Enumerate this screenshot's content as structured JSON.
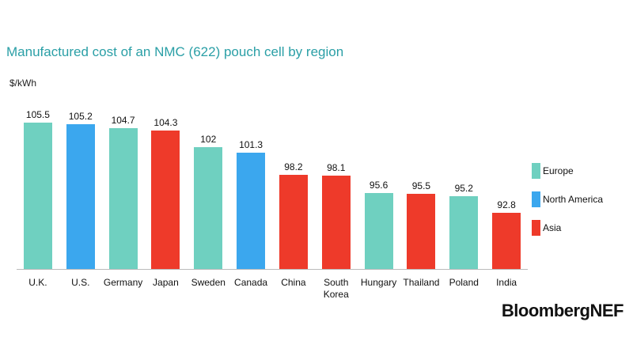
{
  "chart_data": {
    "type": "bar",
    "title": "Manufactured cost of an NMC (622) pouch cell by region",
    "y_label": "$/kWh",
    "source": "BloombergNEF",
    "categories": [
      "U.K.",
      "U.S.",
      "Germany",
      "Japan",
      "Sweden",
      "Canada",
      "China",
      "South Korea",
      "Hungary",
      "Thailand",
      "Poland",
      "India"
    ],
    "series": [
      {
        "name": "Europe",
        "color": "#6fd0c0",
        "values": [
          105.5,
          null,
          104.7,
          null,
          102,
          null,
          null,
          null,
          95.6,
          null,
          95.2,
          null
        ]
      },
      {
        "name": "North America",
        "color": "#3ba7ee",
        "values": [
          null,
          105.2,
          null,
          null,
          null,
          101.3,
          null,
          null,
          null,
          null,
          null,
          null
        ]
      },
      {
        "name": "Asia",
        "color": "#ee3a2a",
        "values": [
          null,
          null,
          null,
          104.3,
          null,
          null,
          98.2,
          98.1,
          null,
          95.5,
          null,
          92.8
        ]
      }
    ],
    "ylim": [
      85,
      107
    ],
    "legend": "right"
  }
}
